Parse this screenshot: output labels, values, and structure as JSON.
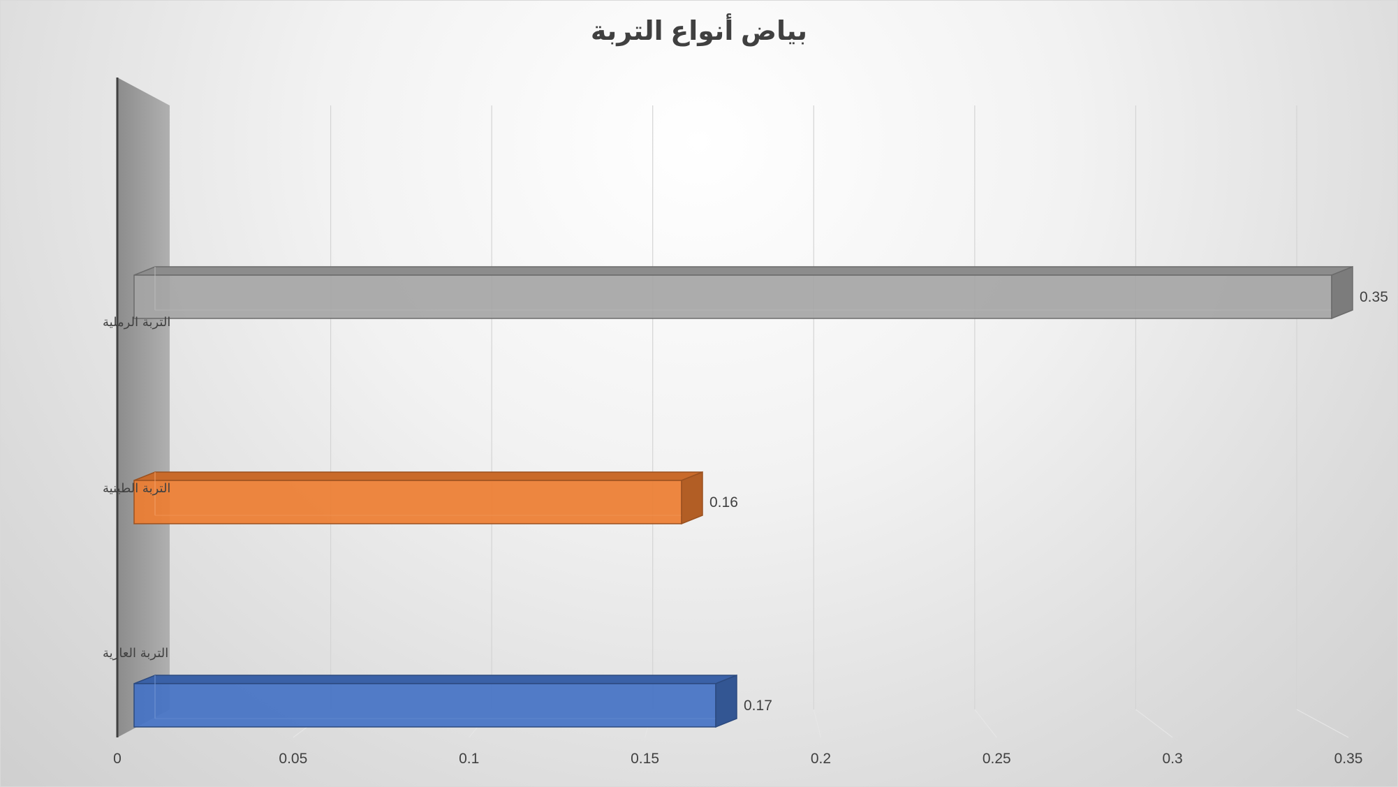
{
  "chart_data": {
    "type": "bar",
    "orientation": "horizontal",
    "title": "بياض أنواع التربة",
    "categories": [
      "التربة العارية",
      "التربة الطينية",
      "التربة الرملية"
    ],
    "values": [
      0.17,
      0.16,
      0.35
    ],
    "data_labels": [
      "0.17",
      "0.16",
      "0.35"
    ],
    "colors": [
      "#4472c4",
      "#ed7d31",
      "#a5a5a5"
    ],
    "x_ticks": [
      "0",
      "0.05",
      "0.1",
      "0.15",
      "0.2",
      "0.25",
      "0.3",
      "0.35"
    ],
    "xlim": [
      0,
      0.35
    ],
    "grid": true,
    "legend": "none",
    "style": "3d"
  }
}
